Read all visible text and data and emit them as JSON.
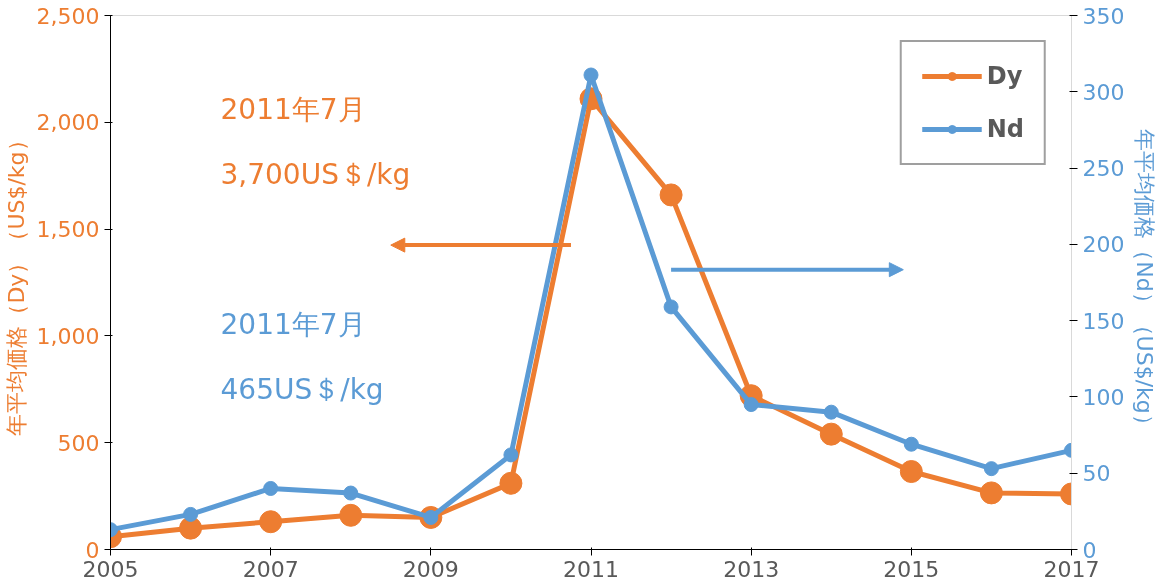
{
  "chart_data": {
    "type": "line",
    "x": [
      2005,
      2006,
      2007,
      2008,
      2009,
      2010,
      2011,
      2012,
      2013,
      2014,
      2015,
      2016,
      2017
    ],
    "series": [
      {
        "name": "Dy",
        "color": "#ed7d31",
        "values": [
          60,
          100,
          130,
          160,
          150,
          310,
          2110,
          1660,
          720,
          540,
          365,
          265,
          260
        ]
      },
      {
        "name": "Nd",
        "color": "#5b9bd5",
        "axis": "y2",
        "values": [
          13,
          23,
          40,
          37,
          21,
          62,
          311,
          159,
          95,
          90,
          69,
          53,
          65
        ]
      }
    ],
    "xlim": [
      2005,
      2017
    ],
    "xticks": [
      2005,
      2007,
      2009,
      2011,
      2013,
      2015,
      2017
    ],
    "ylim": [
      0,
      2500
    ],
    "yticks": [
      0,
      {
        "value": 500,
        "label": "500"
      },
      {
        "value": 1000,
        "label": "1,000"
      },
      {
        "value": 1500,
        "label": "1,500"
      },
      {
        "value": 2000,
        "label": "2,000"
      },
      {
        "value": 2500,
        "label": "2,500"
      }
    ],
    "y2lim": [
      0,
      350
    ],
    "y2ticks": [
      0,
      50,
      100,
      150,
      200,
      250,
      300,
      350
    ],
    "ylabel": "年平均価格（Dy）（US$/kg）",
    "y2label": "年平均価格（Nd）（US$/kg）",
    "annotations": [
      "2011年7月",
      "3,700US＄/kg",
      "2011年7月",
      "465US＄/kg"
    ],
    "marker": "circle",
    "line_style": "solid",
    "grid": false,
    "legend": "top right"
  }
}
